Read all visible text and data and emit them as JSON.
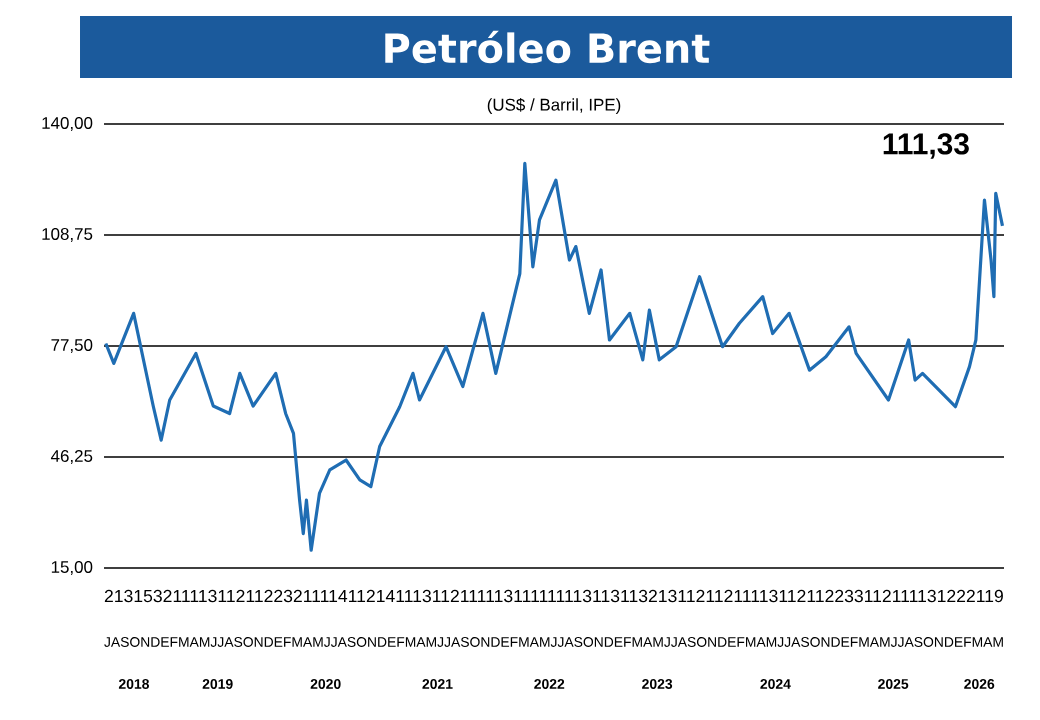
{
  "chart_data": {
    "type": "line",
    "title": "Petróleo Brent",
    "subtitle": "(US$ / Barril, IPE)",
    "x": [
      "2018-07-07",
      "2018-08-02",
      "2018-10-05",
      "2018-12-07",
      "2019-01-02",
      "2019-01-30",
      "2019-04-22",
      "2019-06-17",
      "2019-08-09",
      "2019-09-11",
      "2019-10-24",
      "2020-01-05",
      "2020-02-06",
      "2020-03-01",
      "2020-03-21",
      "2020-04-02",
      "2020-04-12",
      "2020-04-27",
      "2020-05-24",
      "2020-06-26",
      "2020-08-18",
      "2020-10-01",
      "2020-11-06",
      "2020-12-04",
      "2021-02-07",
      "2021-03-20",
      "2021-04-10",
      "2021-07-04",
      "2021-08-28",
      "2021-11-01",
      "2021-12-12",
      "2022-02-26",
      "2022-03-14",
      "2022-04-09",
      "2022-04-30",
      "2022-06-22",
      "2022-08-05",
      "2022-08-26",
      "2022-10-08",
      "2022-11-15",
      "2022-12-12",
      "2023-02-15",
      "2023-03-28",
      "2023-04-18",
      "2023-05-20",
      "2023-07-13",
      "2023-09-27",
      "2023-12-10",
      "2024-02-03",
      "2024-04-17",
      "2024-05-19",
      "2024-07-11",
      "2024-09-15",
      "2024-11-07",
      "2025-01-21",
      "2025-02-12",
      "2025-05-26",
      "2025-07-30",
      "2025-08-20",
      "2025-09-13",
      "2025-12-28",
      "2026-02-11",
      "2026-03-02",
      "2026-03-30",
      "2026-04-20",
      "2026-04-29",
      "2026-05-05",
      "2026-05-27"
    ],
    "series": [
      {
        "color": "#1f6db3",
        "values": [
          78.2,
          72.6,
          86.7,
          60.6,
          51.0,
          62.3,
          75.4,
          60.6,
          58.5,
          69.8,
          60.6,
          69.8,
          58.5,
          52.9,
          34.1,
          24.7,
          34.1,
          20.0,
          36.0,
          42.6,
          45.4,
          39.8,
          37.9,
          49.2,
          60.4,
          69.8,
          62.3,
          77.3,
          66.1,
          86.7,
          69.8,
          97.9,
          128.9,
          99.8,
          113.0,
          124.2,
          101.7,
          105.5,
          86.7,
          98.9,
          79.2,
          86.7,
          73.6,
          87.6,
          73.6,
          77.3,
          97.0,
          77.3,
          83.9,
          91.4,
          81.0,
          86.7,
          70.7,
          74.5,
          82.9,
          75.4,
          62.3,
          79.2,
          67.9,
          69.8,
          60.4,
          71.7,
          79.2,
          118.6,
          101.7,
          91.4,
          120.5,
          111.33
        ]
      }
    ],
    "xlim": [
      "2018-07-01",
      "2026-06-01"
    ],
    "ylim": [
      15,
      140
    ],
    "yticks": [
      {
        "value": 15,
        "label": "15,00"
      },
      {
        "value": 46.25,
        "label": "46,25"
      },
      {
        "value": 77.5,
        "label": "77,50"
      },
      {
        "value": 108.75,
        "label": "108,75"
      },
      {
        "value": 140,
        "label": "140,00"
      }
    ],
    "xticks": [
      {
        "value": "2018-10-06",
        "label": "2018"
      },
      {
        "value": "2019-07-01",
        "label": "2019"
      },
      {
        "value": "2020-06-13",
        "label": "2020"
      },
      {
        "value": "2021-06-07",
        "label": "2021"
      },
      {
        "value": "2022-06-01",
        "label": "2022"
      },
      {
        "value": "2023-05-13",
        "label": "2023"
      },
      {
        "value": "2024-05-28",
        "label": "2024"
      },
      {
        "value": "2025-06-10",
        "label": "2025"
      },
      {
        "value": "2026-03-13",
        "label": "2026"
      }
    ],
    "grid": "y",
    "annotations": [
      "111,33",
      "2131532111131121122321111411214111311211111311111111311311321311211211113112112233112111131222119",
      "JASONDEFMAMJJASONDEFMAMJJASONDEFMAMJJASONDEFMAMJJASONDEFMAMJJASONDEFMAMJJASONDEFMAMJJASONDEFMAM"
    ]
  }
}
